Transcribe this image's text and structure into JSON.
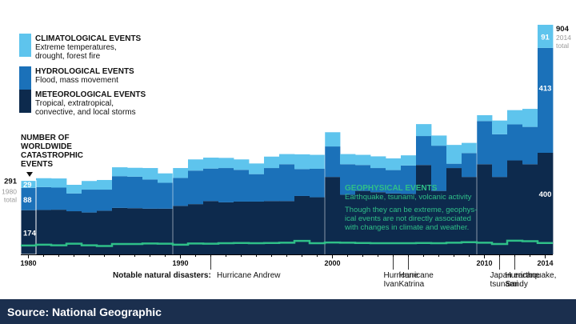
{
  "chart_data": {
    "type": "bar",
    "stacked": true,
    "x": [
      1980,
      1981,
      1982,
      1983,
      1984,
      1985,
      1986,
      1987,
      1988,
      1989,
      1990,
      1991,
      1992,
      1993,
      1994,
      1995,
      1996,
      1997,
      1998,
      1999,
      2000,
      2001,
      2002,
      2003,
      2004,
      2005,
      2006,
      2007,
      2008,
      2009,
      2010,
      2011,
      2012,
      2013,
      2014
    ],
    "x_tick_labels": [
      "1980",
      "1990",
      "2000",
      "2010",
      "2014"
    ],
    "x_tick_years": [
      1980,
      1990,
      2000,
      2010,
      2014
    ],
    "series": [
      {
        "name": "GEOPHYSICAL EVENTS",
        "color": "#2fbf88",
        "values": [
          35,
          38,
          36,
          42,
          36,
          33,
          41,
          41,
          43,
          42,
          38,
          43,
          42,
          44,
          45,
          44,
          45,
          46,
          53,
          44,
          47,
          46,
          45,
          44,
          44,
          44,
          45,
          44,
          46,
          48,
          46,
          41,
          54,
          52,
          45
        ]
      },
      {
        "name": "METEOROLOGICAL EVENTS",
        "color": "#0d2a4d",
        "values": [
          174,
          175,
          176,
          170,
          165,
          172,
          183,
          182,
          180,
          180,
          191,
          198,
          210,
          205,
          208,
          208,
          210,
          210,
          230,
          225,
          305,
          235,
          250,
          245,
          240,
          238,
          352,
          250,
          340,
          305,
          355,
          305,
          370,
          355,
          400
        ]
      },
      {
        "name": "HYDROLOGICAL EVENTS",
        "color": "#1b71b9",
        "values": [
          88,
          90,
          87,
          70,
          90,
          83,
          125,
          124,
          115,
          102,
          110,
          132,
          128,
          135,
          125,
          108,
          130,
          145,
          106,
          112,
          120,
          120,
          102,
          95,
          92,
          112,
          114,
          178,
          17,
          94,
          170,
          168,
          142,
          147,
          413
        ]
      },
      {
        "name": "CLIMATOLOGICAL EVENTS",
        "color": "#5ec4ed",
        "values": [
          29,
          35,
          36,
          34,
          34,
          38,
          35,
          35,
          45,
          37,
          39,
          44,
          43,
          40,
          41,
          42,
          45,
          40,
          58,
          55,
          56,
          40,
          40,
          46,
          46,
          40,
          47,
          40,
          74,
          40,
          23,
          54,
          56,
          71,
          91
        ]
      }
    ],
    "title": "",
    "ylabel": "NUMBER OF WORLDWIDE CATASTROPHIC EVENTS",
    "ylim": [
      0,
      904
    ],
    "grid": false,
    "annotations": {
      "start_values": [
        "291",
        "29",
        "88",
        "174"
      ],
      "start_note": "1980 total",
      "end_values": [
        "904",
        "91",
        "413",
        "400"
      ],
      "end_note": "2014 total"
    }
  },
  "legend": [
    {
      "title": "CLIMATOLOGICAL EVENTS",
      "desc": "Extreme temperatures,\ndrought, forest fire",
      "color": "#5ec4ed"
    },
    {
      "title": "HYDROLOGICAL EVENTS",
      "desc": "Flood, mass movement",
      "color": "#1b71b9"
    },
    {
      "title": "METEOROLOGICAL EVENTS",
      "desc": "Tropical, extratropical,\nconvective, and local storms",
      "color": "#0d2a4d"
    }
  ],
  "number_label": "NUMBER OF\nWORLDWIDE\nCATASTROPHIC\nEVENTS",
  "geophysical": {
    "title": "GEOPHYSICAL EVENTS",
    "subtitle": "Earthquake, tsunami, volcanic activity",
    "note_lines": [
      "Though they can be extreme, geophys-",
      "ical events are not directly associated",
      "with changes in climate and weather."
    ]
  },
  "disasters": {
    "prefix": "Notable natural disasters:",
    "items": [
      {
        "year": 1992,
        "lines": [
          "Hurricane Andrew"
        ]
      },
      {
        "year": 2004,
        "lines": [
          "Hurricane",
          "Ivan"
        ]
      },
      {
        "year": 2005,
        "lines": [
          "Hurricane",
          "Katrina"
        ]
      },
      {
        "year": 2011,
        "lines": [
          "Japan earthquake,",
          "tsunami"
        ]
      },
      {
        "year": 2012,
        "lines": [
          "Hurricane",
          "Sandy"
        ]
      }
    ]
  },
  "source": "Source: National Geographic",
  "colors": {
    "total_label": "#999999",
    "footer": "#1b2f4e"
  }
}
